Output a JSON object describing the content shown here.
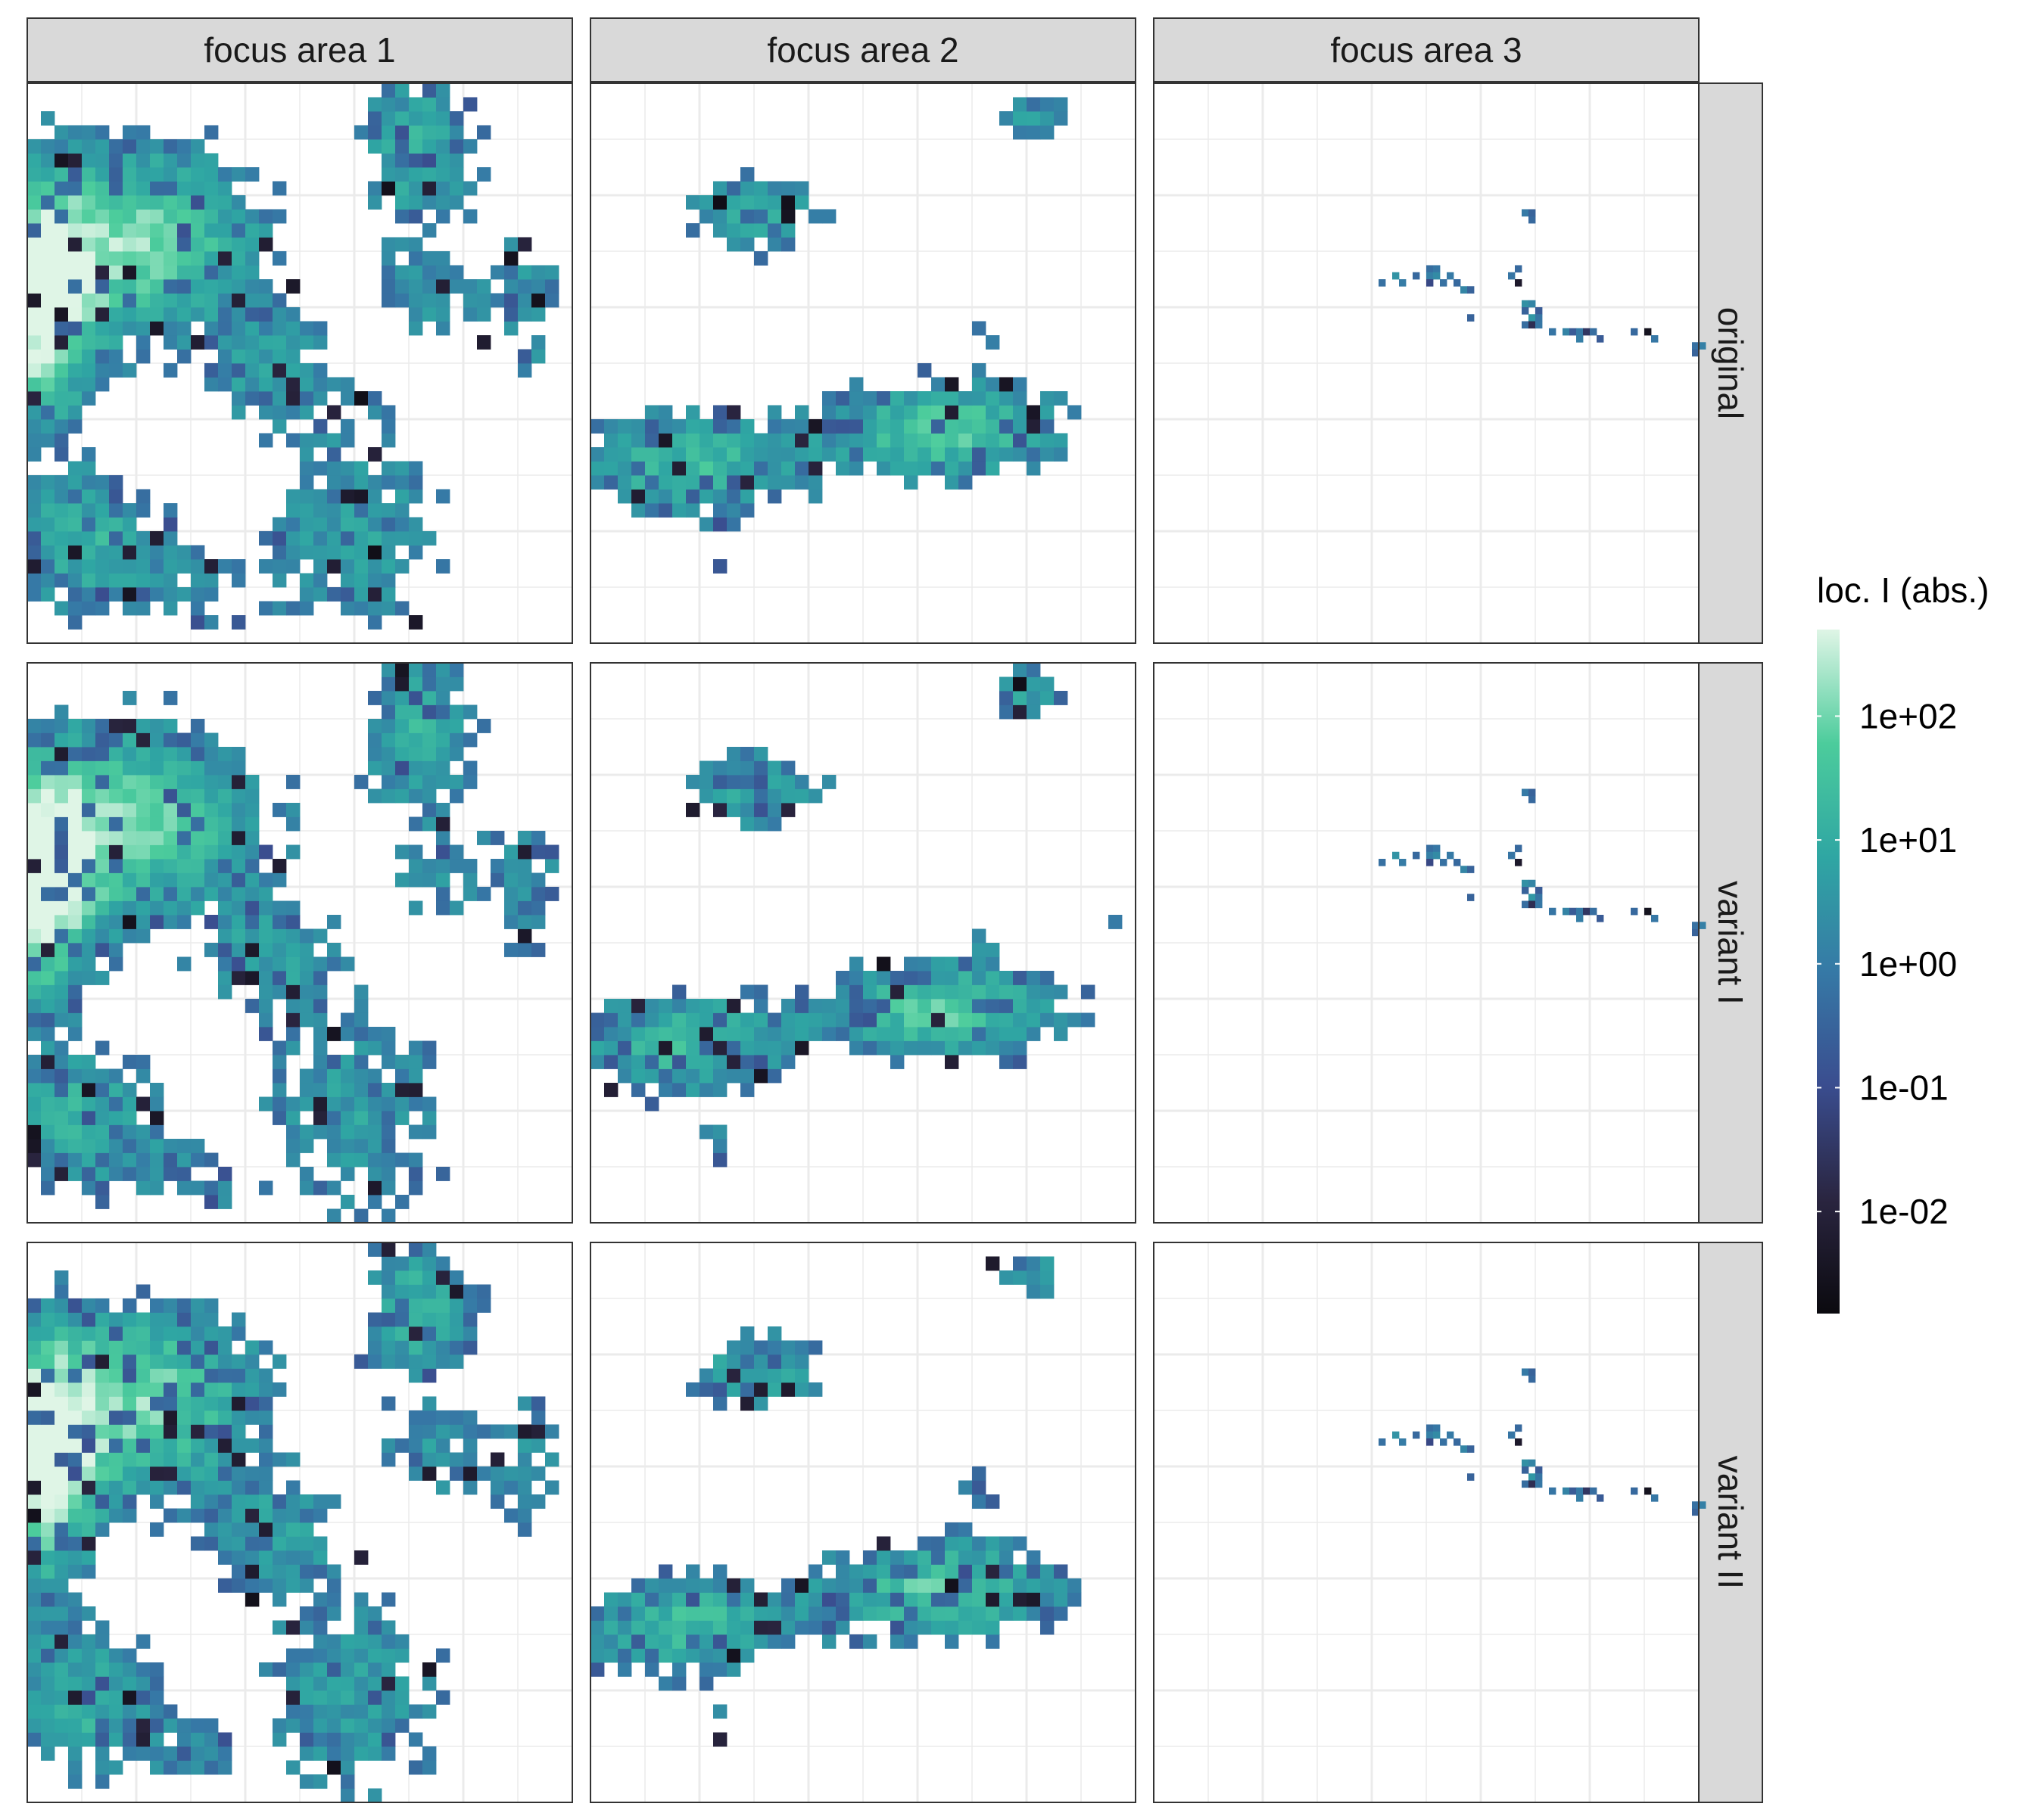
{
  "chart_data": {
    "type": "heatmap",
    "facet_columns": [
      "focus area 1",
      "focus area 2",
      "focus area 3"
    ],
    "facet_rows": [
      "original",
      "variant I",
      "variant II"
    ],
    "legend": {
      "title": "loc. I (abs.)",
      "scale": "log10",
      "range": [
        0.0015,
        500
      ],
      "ticks": [
        0.01,
        0.1,
        1,
        10,
        100
      ],
      "tick_labels": [
        "1e-02",
        "1e-01",
        "1e+00",
        "1e+01",
        "1e+02"
      ],
      "colors": [
        "#0b0a0f",
        "#2a2540",
        "#3a4d8f",
        "#3679a6",
        "#2fa6a3",
        "#4ccc9c",
        "#dff5e6"
      ]
    },
    "grid": true,
    "grid_size": 40,
    "panels": [
      {
        "row": "original",
        "column": "focus area 1",
        "seed": 11,
        "blobs": [
          [
            0.2,
            0.72,
            0.22,
            0.16,
            2.2
          ],
          [
            0.02,
            0.6,
            0.1,
            0.2,
            3.0
          ],
          [
            0.72,
            0.88,
            0.1,
            0.14,
            1.4
          ],
          [
            0.45,
            0.48,
            0.12,
            0.1,
            1.0
          ],
          [
            0.6,
            0.2,
            0.17,
            0.2,
            1.0
          ],
          [
            0.1,
            0.18,
            0.14,
            0.12,
            1.4
          ],
          [
            0.92,
            0.6,
            0.07,
            0.16,
            0.8
          ],
          [
            0.75,
            0.62,
            0.1,
            0.08,
            0.8
          ],
          [
            0.3,
            0.08,
            0.1,
            0.08,
            0.6
          ]
        ]
      },
      {
        "row": "variant I",
        "column": "focus area 1",
        "seed": 23,
        "blobs": [
          [
            0.2,
            0.72,
            0.22,
            0.16,
            2.2
          ],
          [
            0.02,
            0.6,
            0.1,
            0.2,
            3.0
          ],
          [
            0.72,
            0.88,
            0.1,
            0.14,
            1.4
          ],
          [
            0.45,
            0.48,
            0.12,
            0.1,
            1.0
          ],
          [
            0.6,
            0.2,
            0.17,
            0.2,
            1.0
          ],
          [
            0.1,
            0.18,
            0.14,
            0.12,
            1.4
          ],
          [
            0.92,
            0.6,
            0.07,
            0.16,
            0.8
          ],
          [
            0.75,
            0.62,
            0.1,
            0.08,
            0.8
          ],
          [
            0.3,
            0.08,
            0.1,
            0.08,
            0.6
          ]
        ]
      },
      {
        "row": "variant II",
        "column": "focus area 1",
        "seed": 37,
        "blobs": [
          [
            0.2,
            0.72,
            0.22,
            0.16,
            2.2
          ],
          [
            0.02,
            0.6,
            0.1,
            0.2,
            3.0
          ],
          [
            0.72,
            0.88,
            0.1,
            0.14,
            1.4
          ],
          [
            0.45,
            0.48,
            0.12,
            0.1,
            1.0
          ],
          [
            0.6,
            0.2,
            0.17,
            0.2,
            1.0
          ],
          [
            0.1,
            0.18,
            0.14,
            0.12,
            1.4
          ],
          [
            0.92,
            0.6,
            0.07,
            0.16,
            0.8
          ],
          [
            0.75,
            0.62,
            0.1,
            0.08,
            0.8
          ],
          [
            0.3,
            0.08,
            0.1,
            0.08,
            0.6
          ]
        ]
      },
      {
        "row": "original",
        "column": "focus area 2",
        "seed": 41,
        "blobs": [
          [
            0.3,
            0.77,
            0.13,
            0.07,
            1.2
          ],
          [
            0.18,
            0.32,
            0.2,
            0.09,
            1.6
          ],
          [
            0.65,
            0.38,
            0.2,
            0.08,
            2.0
          ],
          [
            0.72,
            0.55,
            0.06,
            0.07,
            0.5
          ],
          [
            0.8,
            0.94,
            0.08,
            0.05,
            1.0
          ],
          [
            0.95,
            0.58,
            0.04,
            0.08,
            0.4
          ],
          [
            0.24,
            0.14,
            0.04,
            0.05,
            0.5
          ],
          [
            0.52,
            0.88,
            0.03,
            0.03,
            0.3
          ]
        ]
      },
      {
        "row": "variant I",
        "column": "focus area 2",
        "seed": 53,
        "blobs": [
          [
            0.3,
            0.77,
            0.13,
            0.07,
            1.2
          ],
          [
            0.18,
            0.32,
            0.2,
            0.09,
            1.6
          ],
          [
            0.65,
            0.38,
            0.2,
            0.08,
            2.0
          ],
          [
            0.72,
            0.55,
            0.06,
            0.07,
            0.5
          ],
          [
            0.8,
            0.94,
            0.08,
            0.05,
            1.0
          ],
          [
            0.95,
            0.58,
            0.04,
            0.08,
            0.4
          ],
          [
            0.24,
            0.14,
            0.04,
            0.05,
            0.5
          ],
          [
            0.52,
            0.88,
            0.03,
            0.03,
            0.3
          ]
        ]
      },
      {
        "row": "variant II",
        "column": "focus area 2",
        "seed": 67,
        "blobs": [
          [
            0.3,
            0.77,
            0.13,
            0.07,
            1.2
          ],
          [
            0.18,
            0.32,
            0.2,
            0.09,
            1.6
          ],
          [
            0.65,
            0.38,
            0.2,
            0.08,
            2.0
          ],
          [
            0.72,
            0.55,
            0.06,
            0.07,
            0.5
          ],
          [
            0.8,
            0.94,
            0.08,
            0.05,
            1.0
          ],
          [
            0.95,
            0.58,
            0.04,
            0.08,
            0.4
          ],
          [
            0.24,
            0.14,
            0.04,
            0.05,
            0.5
          ],
          [
            0.52,
            0.88,
            0.03,
            0.03,
            0.3
          ]
        ]
      },
      {
        "row": "original",
        "column": "focus area 3",
        "seed": 71,
        "blobs": [],
        "cells": [
          [
            40,
            26,
            0.5
          ],
          [
            41,
            26,
            0.8
          ],
          [
            40,
            27,
            1.2
          ],
          [
            41,
            27,
            2.0
          ],
          [
            43,
            27,
            0.9
          ],
          [
            42,
            28,
            0.6
          ],
          [
            44,
            28,
            0.4
          ],
          [
            45,
            29,
            1.5
          ],
          [
            46,
            29,
            0.3
          ],
          [
            40,
            28,
            0.08
          ],
          [
            33,
            28,
            0.6
          ],
          [
            35,
            27,
            3.0
          ],
          [
            36,
            28,
            1.0
          ],
          [
            38,
            27,
            0.4
          ],
          [
            52,
            27,
            0.7
          ],
          [
            53,
            28,
            0.005
          ],
          [
            53,
            26,
            0.4
          ],
          [
            54,
            31,
            2.5
          ],
          [
            55,
            31,
            1.5
          ],
          [
            54,
            32,
            0.3
          ],
          [
            56,
            32,
            0.2
          ],
          [
            55,
            33,
            3.5
          ],
          [
            56,
            33,
            0.7
          ],
          [
            54,
            34,
            0.5
          ],
          [
            55,
            34,
            0.02
          ],
          [
            56,
            34,
            0.8
          ],
          [
            46,
            33,
            0.3
          ],
          [
            58,
            35,
            0.7
          ],
          [
            60,
            35,
            1.4
          ],
          [
            61,
            35,
            0.2
          ],
          [
            62,
            35,
            0.9
          ],
          [
            63,
            35,
            0.03
          ],
          [
            64,
            35,
            0.5
          ],
          [
            62,
            36,
            1.1
          ],
          [
            65,
            36,
            0.2
          ],
          [
            70,
            35,
            0.4
          ],
          [
            72,
            35,
            0.003
          ],
          [
            73,
            36,
            0.8
          ],
          [
            79,
            38,
            0.3
          ],
          [
            80,
            37,
            1.2
          ],
          [
            79,
            37,
            0.6
          ],
          [
            55,
            19,
            0.4
          ],
          [
            54,
            18,
            0.9
          ],
          [
            55,
            18,
            0.3
          ]
        ]
      },
      {
        "row": "variant I",
        "column": "focus area 3",
        "seed": 83,
        "blobs": [],
        "cells": [
          [
            40,
            26,
            0.5
          ],
          [
            41,
            26,
            0.8
          ],
          [
            40,
            27,
            1.2
          ],
          [
            41,
            27,
            2.0
          ],
          [
            43,
            27,
            0.9
          ],
          [
            42,
            28,
            0.6
          ],
          [
            44,
            28,
            0.4
          ],
          [
            45,
            29,
            1.5
          ],
          [
            46,
            29,
            0.3
          ],
          [
            40,
            28,
            0.08
          ],
          [
            33,
            28,
            0.6
          ],
          [
            35,
            27,
            3.0
          ],
          [
            36,
            28,
            1.0
          ],
          [
            38,
            27,
            0.4
          ],
          [
            52,
            27,
            0.7
          ],
          [
            53,
            28,
            0.005
          ],
          [
            53,
            26,
            0.4
          ],
          [
            54,
            31,
            2.5
          ],
          [
            55,
            31,
            1.5
          ],
          [
            54,
            32,
            0.3
          ],
          [
            56,
            32,
            0.2
          ],
          [
            55,
            33,
            3.5
          ],
          [
            56,
            33,
            0.7
          ],
          [
            54,
            34,
            0.5
          ],
          [
            55,
            34,
            0.02
          ],
          [
            56,
            34,
            0.8
          ],
          [
            46,
            33,
            0.3
          ],
          [
            58,
            35,
            0.7
          ],
          [
            60,
            35,
            1.4
          ],
          [
            61,
            35,
            0.2
          ],
          [
            62,
            35,
            0.9
          ],
          [
            63,
            35,
            0.03
          ],
          [
            64,
            35,
            0.5
          ],
          [
            62,
            36,
            1.1
          ],
          [
            65,
            36,
            0.2
          ],
          [
            70,
            35,
            0.4
          ],
          [
            72,
            35,
            0.003
          ],
          [
            73,
            36,
            0.8
          ],
          [
            79,
            38,
            0.3
          ],
          [
            80,
            37,
            1.2
          ],
          [
            79,
            37,
            0.6
          ],
          [
            55,
            19,
            0.4
          ],
          [
            54,
            18,
            0.9
          ],
          [
            55,
            18,
            0.3
          ]
        ]
      },
      {
        "row": "variant II",
        "column": "focus area 3",
        "seed": 97,
        "blobs": [],
        "cells": [
          [
            40,
            26,
            0.5
          ],
          [
            41,
            26,
            0.8
          ],
          [
            40,
            27,
            1.2
          ],
          [
            41,
            27,
            2.0
          ],
          [
            43,
            27,
            0.9
          ],
          [
            42,
            28,
            0.6
          ],
          [
            44,
            28,
            0.4
          ],
          [
            45,
            29,
            1.5
          ],
          [
            46,
            29,
            0.3
          ],
          [
            40,
            28,
            0.08
          ],
          [
            33,
            28,
            0.6
          ],
          [
            35,
            27,
            3.0
          ],
          [
            36,
            28,
            1.0
          ],
          [
            38,
            27,
            0.4
          ],
          [
            52,
            27,
            0.7
          ],
          [
            53,
            28,
            0.005
          ],
          [
            53,
            26,
            0.4
          ],
          [
            54,
            31,
            2.5
          ],
          [
            55,
            31,
            1.5
          ],
          [
            54,
            32,
            0.3
          ],
          [
            56,
            32,
            0.2
          ],
          [
            55,
            33,
            3.5
          ],
          [
            56,
            33,
            0.7
          ],
          [
            54,
            34,
            0.5
          ],
          [
            55,
            34,
            0.02
          ],
          [
            56,
            34,
            0.8
          ],
          [
            46,
            33,
            0.3
          ],
          [
            58,
            35,
            0.7
          ],
          [
            60,
            35,
            1.4
          ],
          [
            61,
            35,
            0.2
          ],
          [
            62,
            35,
            0.9
          ],
          [
            63,
            35,
            0.03
          ],
          [
            64,
            35,
            0.5
          ],
          [
            62,
            36,
            1.1
          ],
          [
            65,
            36,
            0.2
          ],
          [
            70,
            35,
            0.4
          ],
          [
            72,
            35,
            0.003
          ],
          [
            73,
            36,
            0.8
          ],
          [
            79,
            38,
            0.3
          ],
          [
            80,
            37,
            1.2
          ],
          [
            79,
            37,
            0.6
          ],
          [
            55,
            19,
            0.4
          ],
          [
            54,
            18,
            0.9
          ],
          [
            55,
            18,
            0.3
          ]
        ]
      }
    ]
  }
}
